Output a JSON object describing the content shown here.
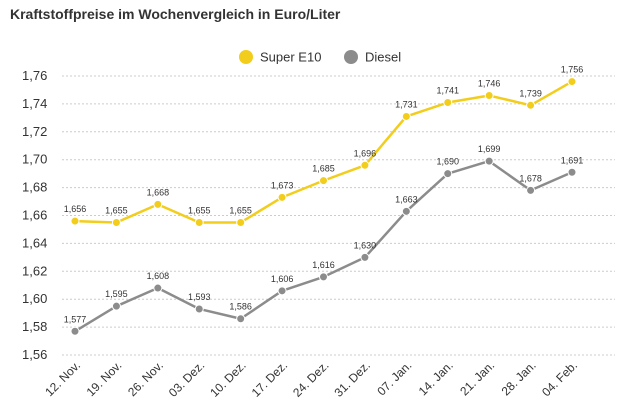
{
  "title": "Kraftstoffpreise im Wochenvergleich in Euro/Liter",
  "colors": {
    "super_e10": "#f2cd1b",
    "diesel": "#8c8c8c",
    "grid": "#cccccc"
  },
  "chart_data": {
    "type": "line",
    "title": "Kraftstoffpreise im Wochenvergleich in Euro/Liter",
    "xlabel": "",
    "ylabel": "",
    "categories": [
      "12. Nov.",
      "19. Nov.",
      "26. Nov.",
      "03. Dez.",
      "10. Dez.",
      "17. Dez.",
      "24. Dez.",
      "31. Dez.",
      "07. Jan.",
      "14. Jan.",
      "21. Jan.",
      "28. Jan.",
      "04. Feb."
    ],
    "ylim": [
      1.56,
      1.76
    ],
    "yticks": [
      "1,56",
      "1,58",
      "1,60",
      "1,62",
      "1,64",
      "1,66",
      "1,68",
      "1,70",
      "1,72",
      "1,74",
      "1,76"
    ],
    "legend_position": "top-center",
    "grid": true,
    "series": [
      {
        "name": "Super E10",
        "color": "#f2cd1b",
        "values": [
          1.656,
          1.655,
          1.668,
          1.655,
          1.655,
          1.673,
          1.685,
          1.696,
          1.731,
          1.741,
          1.746,
          1.739,
          1.756
        ],
        "labels": [
          "1,656",
          "1,655",
          "1,668",
          "1,655",
          "1,655",
          "1,673",
          "1,685",
          "1,696",
          "1,731",
          "1,741",
          "1,746",
          "1,739",
          "1,756"
        ]
      },
      {
        "name": "Diesel",
        "color": "#8c8c8c",
        "values": [
          1.577,
          1.595,
          1.608,
          1.593,
          1.586,
          1.606,
          1.616,
          1.63,
          1.663,
          1.69,
          1.699,
          1.678,
          1.691
        ],
        "labels": [
          "1,577",
          "1,595",
          "1,608",
          "1,593",
          "1,586",
          "1,606",
          "1,616",
          "1,630",
          "1,663",
          "1,690",
          "1,699",
          "1,678",
          "1,691"
        ]
      }
    ]
  }
}
